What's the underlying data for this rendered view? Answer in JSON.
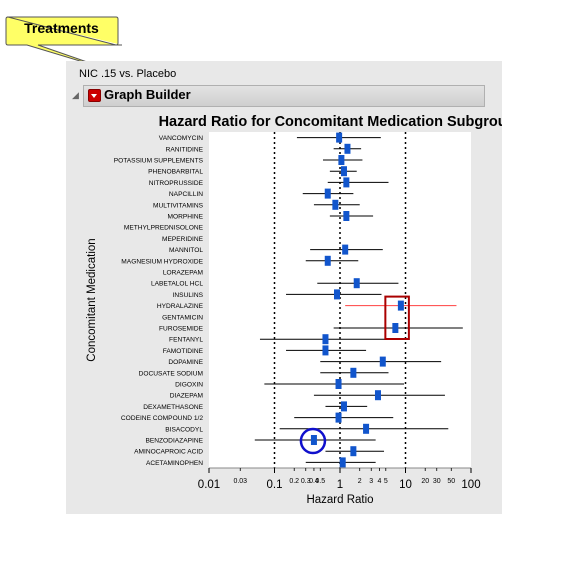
{
  "callout": {
    "label": "Treatments"
  },
  "report": {
    "subtitle": "NIC .15 vs. Placebo"
  },
  "graph_builder": {
    "label": "Graph Builder"
  },
  "chart_data": {
    "type": "scatter",
    "title": "Hazard Ratio for Concomitant Medication Subgroup",
    "xlabel": "Hazard Ratio",
    "ylabel": "Concomitant Medication",
    "xscale": "log",
    "xlim": [
      0.01,
      100
    ],
    "xticks_major": [
      0.01,
      0.1,
      1,
      10,
      100
    ],
    "xticks_major_labels": [
      "0.01",
      "0.1",
      "1",
      "10",
      "100"
    ],
    "xticks_minor": [
      0.03,
      0.2,
      0.3,
      0.4,
      0.5,
      2,
      3,
      4,
      5,
      20,
      30,
      50
    ],
    "xticks_minor_labels": [
      "0.03",
      "0.2",
      "0.3",
      "0.4",
      "0.5",
      "2",
      "3",
      "4",
      "5",
      "20",
      "30",
      "50"
    ],
    "reference_lines": [
      0.1,
      1,
      10
    ],
    "categories": [
      "VANCOMYCIN",
      "RANITIDINE",
      "POTASSIUM SUPPLEMENTS",
      "PHENOBARBITAL",
      "NITROPRUSSIDE",
      "NAPCILLIN",
      "MULTIVITAMINS",
      "MORPHINE",
      "METHYLPREDNISOLONE",
      "MEPERIDINE",
      "MANNITOL",
      "MAGNESIUM HYDROXIDE",
      "LORAZEPAM",
      "LABETALOL HCL",
      "INSULINS",
      "HYDRALAZINE",
      "GENTAMICIN",
      "FUROSEMIDE",
      "FENTANYL",
      "FAMOTIDINE",
      "DOPAMINE",
      "DOCUSATE SODIUM",
      "DIGOXIN",
      "DIAZEPAM",
      "DEXAMETHASONE",
      "CODEINE COMPOUND 1/2",
      "BISACODYL",
      "BENZODIAZAPINE",
      "AMINOCAPROIC ACID",
      "ACETAMINOPHEN"
    ],
    "hazard_ratio": [
      0.97,
      1.3,
      1.05,
      1.15,
      1.25,
      0.65,
      0.85,
      1.25,
      null,
      null,
      1.2,
      0.65,
      null,
      1.8,
      0.9,
      8.5,
      null,
      7.0,
      0.6,
      0.6,
      4.5,
      1.6,
      0.95,
      3.8,
      1.15,
      0.95,
      2.5,
      0.4,
      1.6,
      1.1
    ],
    "lower_ci": [
      0.22,
      0.8,
      0.55,
      0.7,
      0.65,
      0.27,
      0.4,
      0.7,
      null,
      null,
      0.35,
      0.3,
      null,
      0.45,
      0.15,
      1.2,
      null,
      0.8,
      0.06,
      0.15,
      0.5,
      0.5,
      0.07,
      0.4,
      0.6,
      0.2,
      0.12,
      0.05,
      0.6,
      0.3
    ],
    "upper_ci": [
      4.2,
      2.1,
      2.2,
      1.8,
      5.5,
      1.6,
      2.0,
      3.2,
      null,
      null,
      4.5,
      1.9,
      null,
      7.8,
      4.3,
      60,
      null,
      75,
      6.0,
      2.5,
      35,
      5.5,
      9.5,
      40,
      2.6,
      6.5,
      45,
      3.5,
      4.7,
      3.5
    ],
    "highlighted_interval_color": "#ff4040",
    "highlight_circle": [
      "BENZODIAZAPINE"
    ],
    "highlight_box": [
      "HYDRALAZINE",
      "GENTAMICIN",
      "FUROSEMIDE"
    ],
    "marker_color": "#1155cc",
    "circle_color": "#1010cc",
    "box_color": "#aa0000",
    "callout_color": "#ffff66"
  }
}
